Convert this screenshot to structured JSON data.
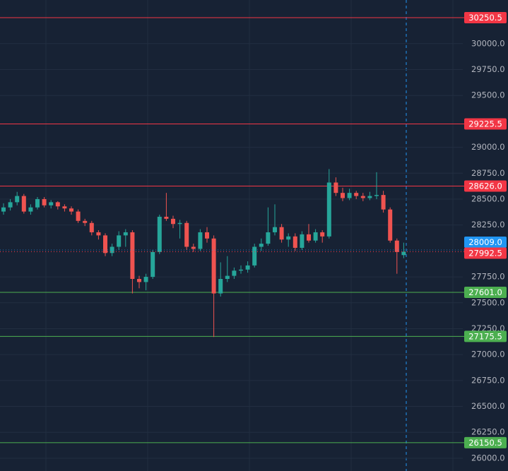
{
  "chart_data": {
    "type": "candlestick",
    "up_color": "#26a69a",
    "down_color": "#ef5350",
    "open": [
      28380,
      28420,
      28470,
      28530,
      28380,
      28420,
      28500,
      28440,
      28470,
      28430,
      28410,
      28380,
      28290,
      28270,
      28180,
      28150,
      27980,
      28040,
      28150,
      28180,
      27730,
      27700,
      27750,
      27990,
      28330,
      28310,
      28260,
      28270,
      28040,
      28020,
      28180,
      28120,
      27590,
      27730,
      27760,
      27810,
      27820,
      27860,
      28040,
      28070,
      28180,
      28230,
      28110,
      28140,
      28030,
      28160,
      28100,
      28180,
      28140,
      28660,
      28560,
      28510,
      28560,
      28530,
      28510,
      28530,
      28540,
      28400,
      28100,
      27960
    ],
    "high": [
      28460,
      28500,
      28570,
      28550,
      28450,
      28520,
      28520,
      28490,
      28480,
      28450,
      28430,
      28400,
      28310,
      28290,
      28200,
      28170,
      28070,
      28190,
      28210,
      28200,
      27760,
      27780,
      28010,
      28350,
      28560,
      28340,
      28300,
      28290,
      28070,
      28210,
      28230,
      28150,
      27890,
      27950,
      27840,
      27860,
      27900,
      28070,
      28120,
      28420,
      28450,
      28260,
      28170,
      28170,
      28190,
      28260,
      28210,
      28200,
      28790,
      28710,
      28610,
      28600,
      28580,
      28560,
      28570,
      28760,
      28580,
      28420,
      28120,
      28080
    ],
    "low": [
      28350,
      28390,
      28440,
      28360,
      28350,
      28400,
      28420,
      28410,
      28400,
      28380,
      28350,
      28270,
      28240,
      28150,
      28110,
      27950,
      27950,
      28010,
      28040,
      27590,
      27640,
      27620,
      27730,
      27970,
      28290,
      28220,
      28120,
      28010,
      27990,
      28000,
      28080,
      27170,
      27560,
      27700,
      27730,
      27780,
      27790,
      27840,
      28000,
      28050,
      28150,
      28080,
      28040,
      28000,
      28010,
      28080,
      28080,
      28080,
      28120,
      28530,
      28480,
      28490,
      28500,
      28480,
      28490,
      28500,
      28370,
      28080,
      27780,
      27930
    ],
    "close": [
      28420,
      28470,
      28530,
      28380,
      28420,
      28500,
      28440,
      28470,
      28430,
      28410,
      28380,
      28290,
      28270,
      28180,
      28150,
      27980,
      28040,
      28150,
      28180,
      27730,
      27700,
      27750,
      27990,
      28330,
      28310,
      28260,
      28270,
      28040,
      28020,
      28180,
      28120,
      27590,
      27730,
      27760,
      27810,
      27820,
      27860,
      28040,
      28070,
      28180,
      28230,
      28110,
      28140,
      28030,
      28160,
      28100,
      28180,
      28140,
      28660,
      28560,
      28510,
      28560,
      28530,
      28510,
      28530,
      28540,
      28400,
      28100,
      27990,
      27992.5
    ],
    "ylim": [
      25877,
      30421
    ],
    "yticks": [
      {
        "value": 26000,
        "label": "26000.0"
      },
      {
        "value": 26250,
        "label": "26250.0"
      },
      {
        "value": 26500,
        "label": "26500.0"
      },
      {
        "value": 26750,
        "label": "26750.0"
      },
      {
        "value": 27000,
        "label": "27000.0"
      },
      {
        "value": 27250,
        "label": "27250.0"
      },
      {
        "value": 27500,
        "label": "27500.0"
      },
      {
        "value": 27750,
        "label": "27750.0"
      },
      {
        "value": 28250,
        "label": "28250.0"
      },
      {
        "value": 28500,
        "label": "28500.0"
      },
      {
        "value": 28750,
        "label": "28750.0"
      },
      {
        "value": 29000,
        "label": "29000.0"
      },
      {
        "value": 29500,
        "label": "29500.0"
      },
      {
        "value": 29750,
        "label": "29750.0"
      },
      {
        "value": 30000,
        "label": "30000.0"
      }
    ],
    "levels": [
      {
        "value": 30250.5,
        "label": "30250.5",
        "color": "#f23645"
      },
      {
        "value": 29225.5,
        "label": "29225.5",
        "color": "#f23645"
      },
      {
        "value": 28626,
        "label": "28626.0",
        "color": "#f23645"
      },
      {
        "value": 27601,
        "label": "27601.0",
        "color": "#4caf50"
      },
      {
        "value": 27175.5,
        "label": "27175.5",
        "color": "#4caf50"
      },
      {
        "value": 26150.5,
        "label": "26150.5",
        "color": "#4caf50"
      }
    ],
    "mark_price": {
      "value": 28009,
      "label": "28009.0",
      "color": "#2196f3"
    },
    "last_price": {
      "value": 27992.5,
      "color": "#f23645"
    },
    "grid": true
  }
}
